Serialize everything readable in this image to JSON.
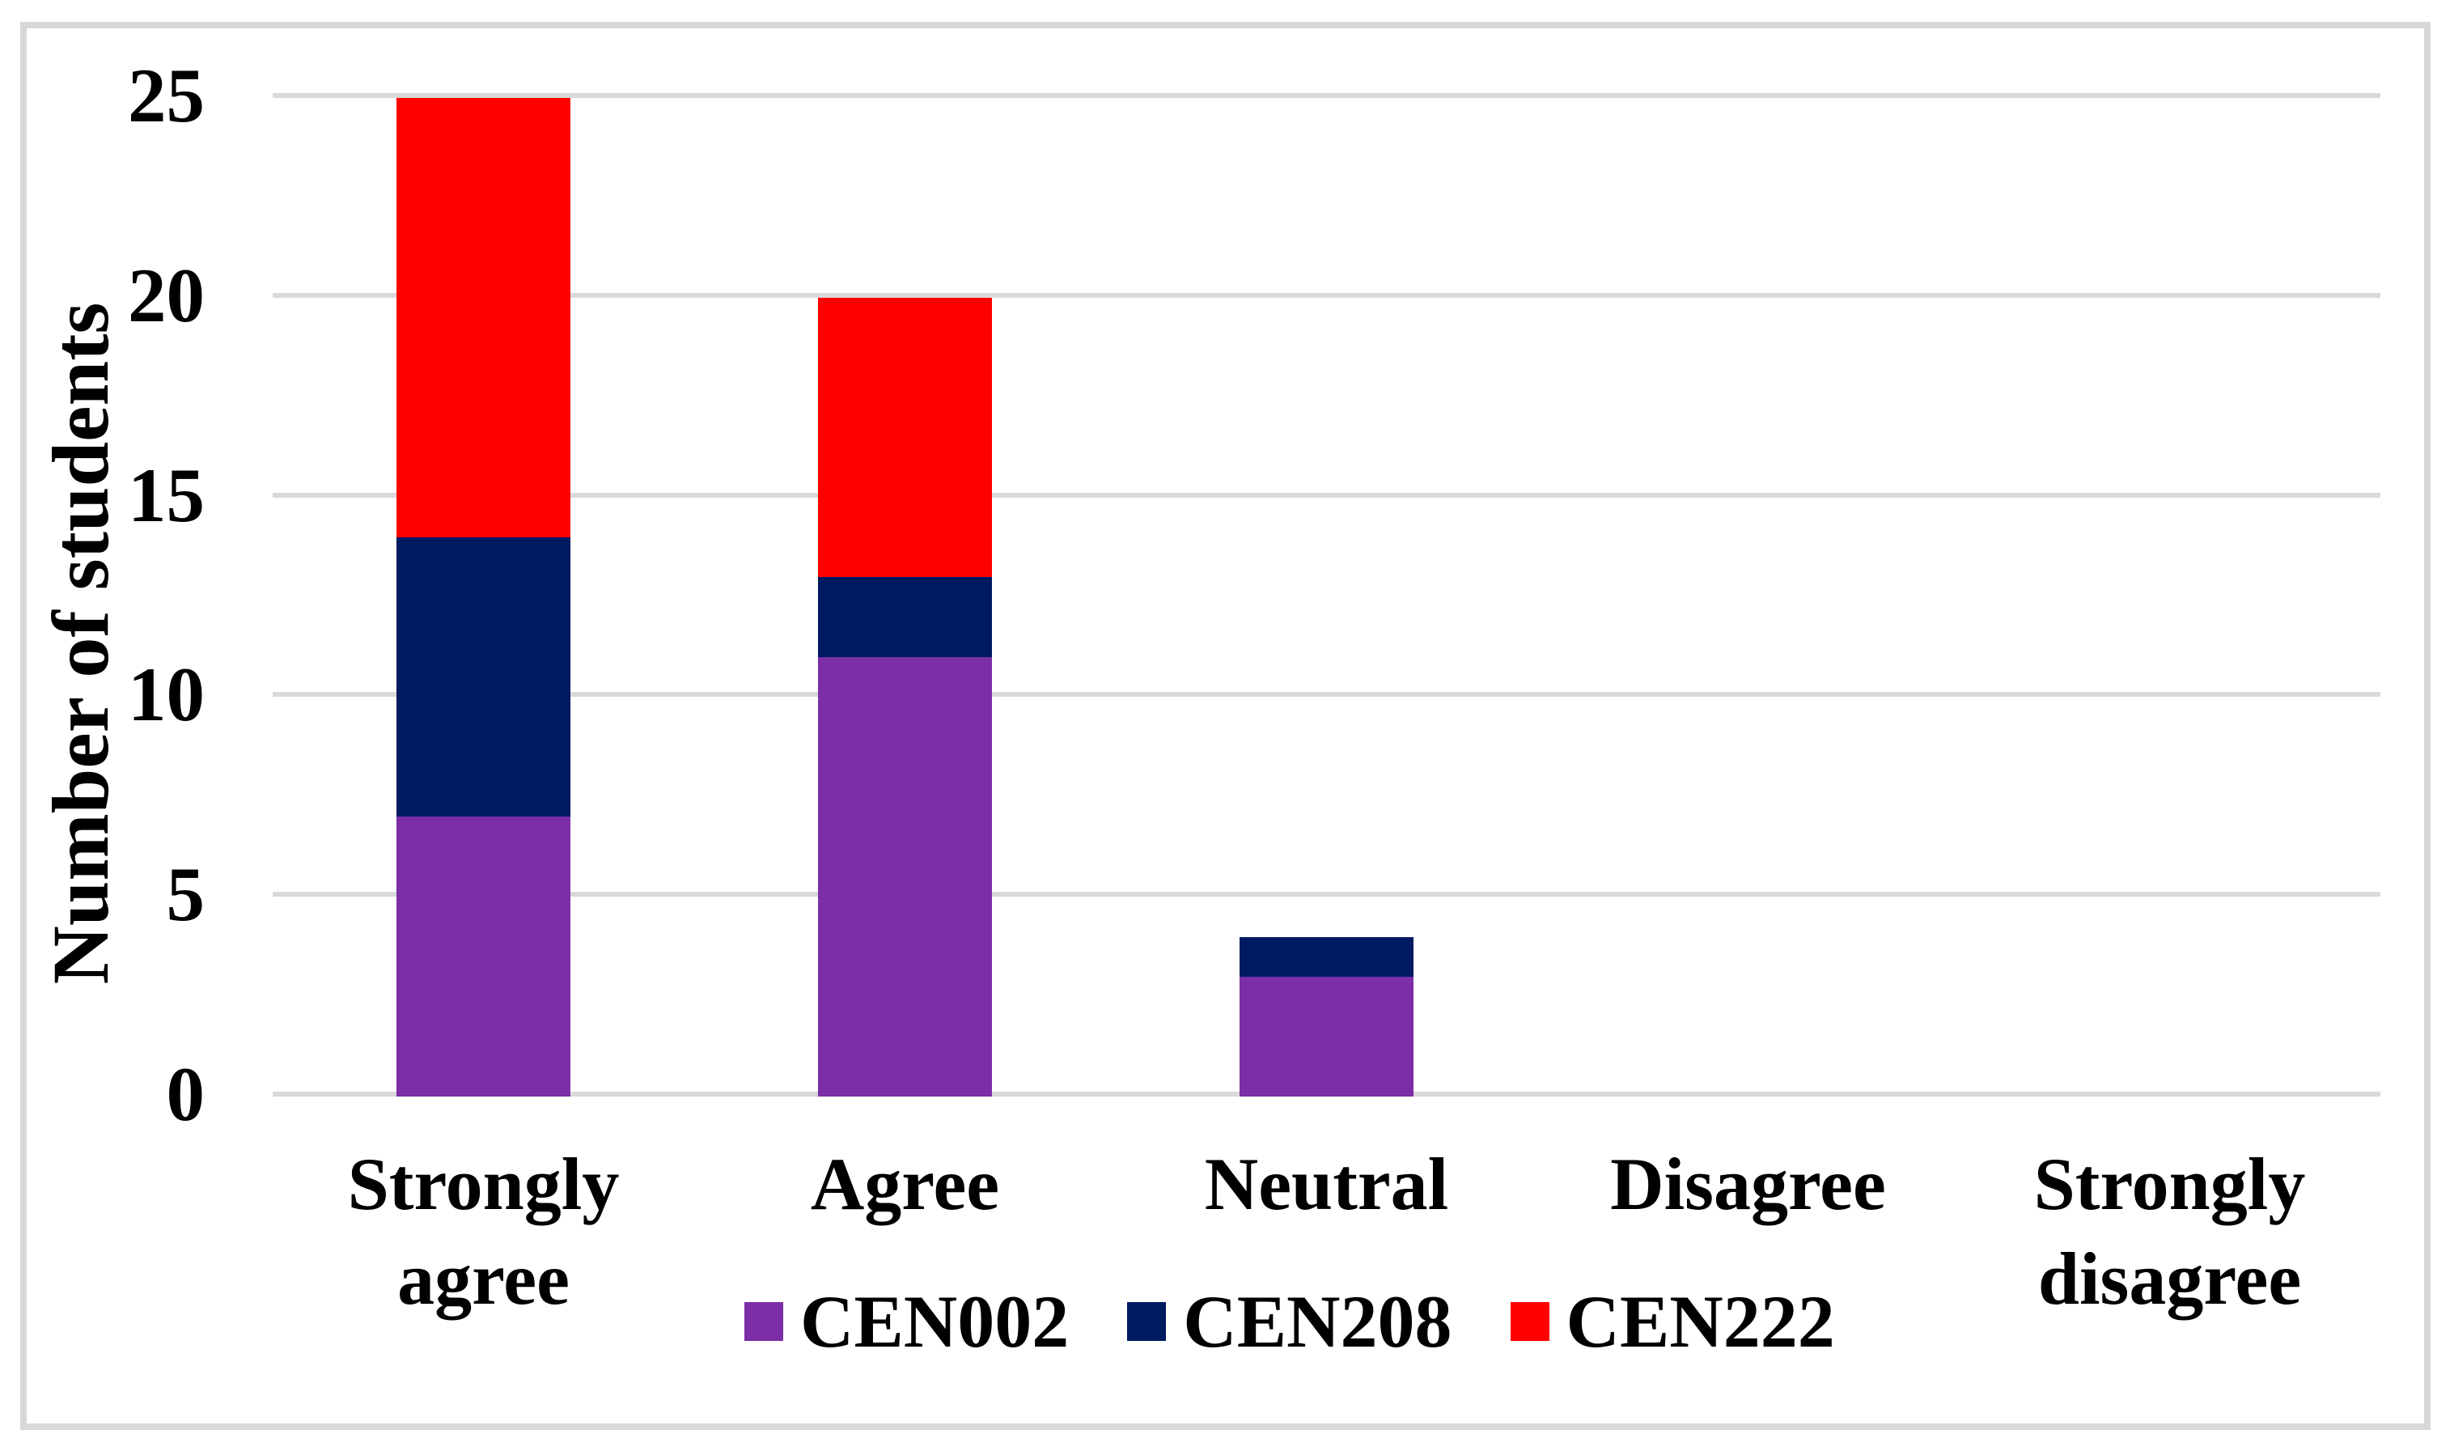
{
  "figure": {
    "background_color": "#FFFFFF",
    "border_color": "#D8D8D8",
    "text_color": "#000000"
  },
  "chart_data": {
    "type": "bar",
    "stacked": true,
    "title": "",
    "xlabel": "",
    "ylabel": "Number of students",
    "categories": [
      "Strongly agree",
      "Agree",
      "Neutral",
      "Disagree",
      "Strongly disagree"
    ],
    "series": [
      {
        "name": "CEN002",
        "color": "#7C2EA6",
        "values": [
          7,
          11,
          3,
          0,
          0
        ]
      },
      {
        "name": "CEN208",
        "color": "#001A62",
        "values": [
          7,
          2,
          1,
          0,
          0
        ]
      },
      {
        "name": "CEN222",
        "color": "#FF0000",
        "values": [
          11,
          7,
          0,
          0,
          0
        ]
      }
    ],
    "ylim": [
      0,
      25
    ],
    "yticks": [
      0,
      5,
      10,
      15,
      20,
      25
    ],
    "grid": "horizontal",
    "gridline_color": "#D9D9D9",
    "legend_position": "bottom-center",
    "legend_entries": [
      "CEN002",
      "CEN208",
      "CEN222"
    ]
  }
}
